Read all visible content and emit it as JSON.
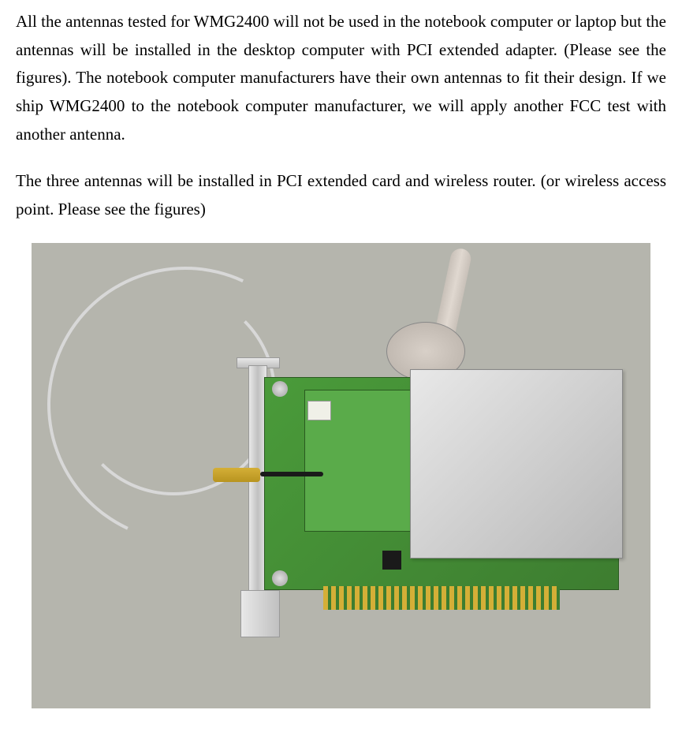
{
  "document": {
    "paragraph1": "All the antennas tested for WMG2400 will not be used in the notebook computer or laptop but the antennas will be installed in the desktop computer with PCI extended adapter. (Please see the figures). The notebook computer manufacturers have their own antennas to fit their design. If we ship WMG2400 to the notebook computer manufacturer, we will apply another FCC test with another antenna.",
    "paragraph2": "The three antennas will be installed in PCI extended card and wireless router. (or wireless access point. Please see the figures)"
  },
  "figure": {
    "description": "PCI extended card with wireless adapter, antenna, and cable",
    "background_color": "#b5b5ad",
    "pcb_color": "#4a9b3a",
    "shield_color": "#d0d0d0",
    "antenna_color": "#d8d0c8",
    "cable_color": "#d8d8d8",
    "connector_color": "#d4af37",
    "bracket_color": "#c0c0c0"
  },
  "styling": {
    "font_family": "Times New Roman",
    "font_size_pt": 16,
    "text_color": "#000000",
    "background_color": "#ffffff",
    "line_height": 1.7
  }
}
